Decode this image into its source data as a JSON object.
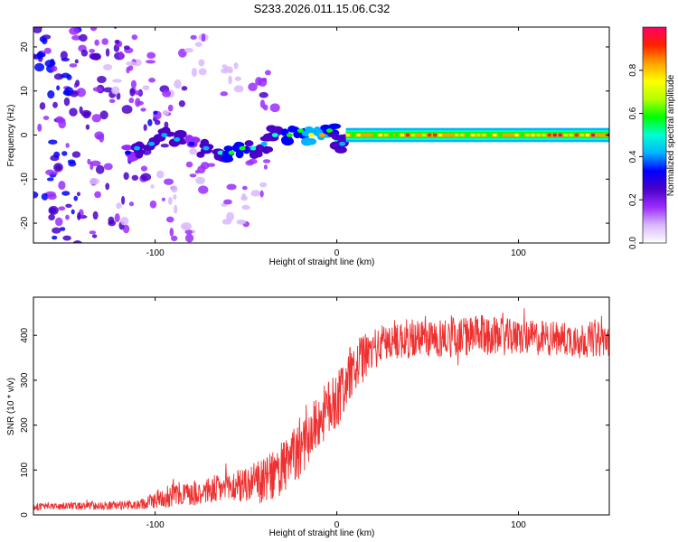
{
  "title": "S233.2026.011.15.06.C32",
  "chart_data": [
    {
      "type": "heatmap",
      "xlabel": "Height of straight line (km)",
      "ylabel": "Frequency (Hz)",
      "xlim": [
        -167,
        150
      ],
      "ylim": [
        -24.5,
        24.5
      ],
      "xticks": [
        -100,
        0,
        100
      ],
      "yticks": [
        -20,
        -10,
        0,
        10,
        20
      ],
      "colorbar": {
        "label": "Normalized spectral amplitude",
        "range": [
          0.0,
          1.0
        ],
        "ticks": [
          0.0,
          0.2,
          0.4,
          0.6,
          0.8
        ],
        "tick_labels": [
          "0.0",
          "0.2",
          "0.4",
          "0.6",
          "0.8"
        ],
        "colors": [
          "#ffffff",
          "#d9b8ff",
          "#9a2cff",
          "#4b00c8",
          "#0000ff",
          "#00b4ff",
          "#00ffd0",
          "#00ff00",
          "#b4ff00",
          "#ffff00",
          "#ffa000",
          "#ff2000",
          "#ff0066"
        ]
      },
      "blobs": [
        {
          "x": -160,
          "y": 18,
          "a": 0.35
        },
        {
          "x": -150,
          "y": 14,
          "a": 0.4
        },
        {
          "x": -145,
          "y": 8,
          "a": 0.3
        },
        {
          "x": -158,
          "y": 5,
          "a": 0.35
        },
        {
          "x": -140,
          "y": 20,
          "a": 0.3
        },
        {
          "x": -135,
          "y": 2,
          "a": 0.3
        },
        {
          "x": -150,
          "y": -6,
          "a": 0.35
        },
        {
          "x": -160,
          "y": -10,
          "a": 0.3
        },
        {
          "x": -145,
          "y": -15,
          "a": 0.35
        },
        {
          "x": -155,
          "y": -20,
          "a": 0.3
        },
        {
          "x": -130,
          "y": -10,
          "a": 0.28
        },
        {
          "x": -125,
          "y": 12,
          "a": 0.25
        },
        {
          "x": -120,
          "y": -18,
          "a": 0.25
        },
        {
          "x": -115,
          "y": 6,
          "a": 0.22
        },
        {
          "x": -110,
          "y": -6,
          "a": 0.28
        },
        {
          "x": -108,
          "y": 15,
          "a": 0.2
        },
        {
          "x": -100,
          "y": 2,
          "a": 0.35
        },
        {
          "x": -95,
          "y": -12,
          "a": 0.2
        },
        {
          "x": -90,
          "y": 8,
          "a": 0.2
        },
        {
          "x": -85,
          "y": -20,
          "a": 0.18
        },
        {
          "x": -80,
          "y": 18,
          "a": 0.15
        },
        {
          "x": -75,
          "y": -8,
          "a": 0.2
        },
        {
          "x": -60,
          "y": 12,
          "a": 0.12
        },
        {
          "x": -55,
          "y": -16,
          "a": 0.12
        },
        {
          "x": -40,
          "y": 10,
          "a": 0.22
        },
        {
          "x": -45,
          "y": -10,
          "a": 0.15
        },
        {
          "x": -165,
          "y": 22,
          "a": 0.35
        },
        {
          "x": -138,
          "y": -22,
          "a": 0.3
        },
        {
          "x": -128,
          "y": 22,
          "a": 0.25
        },
        {
          "x": -118,
          "y": 20,
          "a": 0.2
        }
      ],
      "ridge": [
        {
          "x": -115,
          "y": -4,
          "a": 0.35
        },
        {
          "x": -110,
          "y": -3,
          "a": 0.4
        },
        {
          "x": -102,
          "y": -2,
          "a": 0.45
        },
        {
          "x": -95,
          "y": 0,
          "a": 0.4
        },
        {
          "x": -88,
          "y": -1,
          "a": 0.45
        },
        {
          "x": -80,
          "y": -2,
          "a": 0.35
        },
        {
          "x": -72,
          "y": -3,
          "a": 0.4
        },
        {
          "x": -64,
          "y": -4,
          "a": 0.5
        },
        {
          "x": -58,
          "y": -4,
          "a": 0.55
        },
        {
          "x": -52,
          "y": -3,
          "a": 0.55
        },
        {
          "x": -46,
          "y": -3,
          "a": 0.5
        },
        {
          "x": -40,
          "y": -2,
          "a": 0.45
        },
        {
          "x": -34,
          "y": 0,
          "a": 0.5
        },
        {
          "x": -26,
          "y": 0,
          "a": 0.55
        },
        {
          "x": -20,
          "y": 1,
          "a": 0.6
        },
        {
          "x": -14,
          "y": 0,
          "a": 0.75
        },
        {
          "x": -8,
          "y": 0,
          "a": 0.8
        },
        {
          "x": -4,
          "y": 1,
          "a": 0.6
        },
        {
          "x": 0,
          "y": -1,
          "a": 0.5
        },
        {
          "x": 3,
          "y": -2,
          "a": 0.45
        }
      ],
      "tone": {
        "x_start": 5,
        "x_end": 150,
        "y": 0,
        "peak": 0.85,
        "edge": 0.55
      }
    },
    {
      "type": "line",
      "xlabel": "Height of straight line (km)",
      "ylabel": "SNR (10 * v/v)",
      "xlim": [
        -167,
        150
      ],
      "ylim": [
        0,
        485
      ],
      "xticks": [
        -100,
        0,
        100
      ],
      "yticks": [
        0,
        100,
        200,
        300,
        400
      ],
      "color": "#ee3030",
      "profile": {
        "x": [
          -167,
          -110,
          -95,
          -80,
          -60,
          -40,
          -30,
          -20,
          -10,
          0,
          10,
          20,
          30,
          60,
          80,
          100,
          150
        ],
        "y": [
          18,
          22,
          40,
          50,
          60,
          75,
          100,
          150,
          210,
          260,
          330,
          370,
          390,
          395,
          400,
          395,
          390
        ],
        "noise": [
          8,
          10,
          25,
          30,
          35,
          50,
          60,
          70,
          60,
          70,
          60,
          45,
          45,
          45,
          45,
          40,
          40
        ]
      }
    }
  ]
}
